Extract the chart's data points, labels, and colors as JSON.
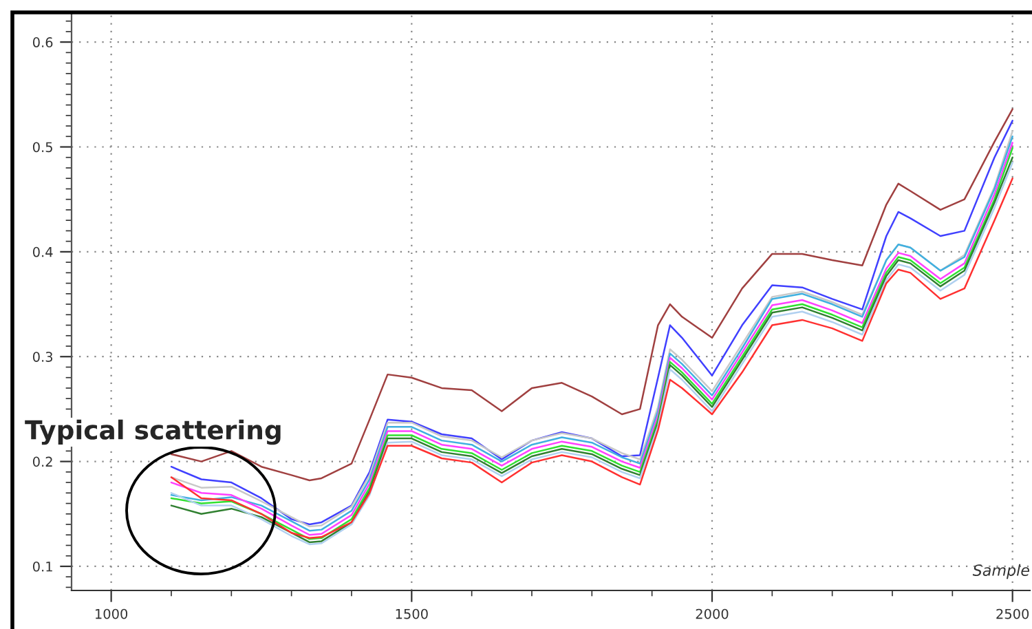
{
  "chart_data": {
    "type": "line",
    "xlabel": "Sample",
    "annotations": [
      "Typical scattering"
    ],
    "x": [
      1100,
      1150,
      1200,
      1250,
      1300,
      1330,
      1350,
      1400,
      1430,
      1460,
      1500,
      1550,
      1600,
      1650,
      1700,
      1750,
      1800,
      1850,
      1880,
      1910,
      1930,
      1950,
      2000,
      2050,
      2100,
      2150,
      2200,
      2250,
      2290,
      2310,
      2330,
      2380,
      2420,
      2470,
      2500
    ],
    "series": [
      {
        "color": "#a04040",
        "values": [
          0.207,
          0.2,
          0.21,
          0.195,
          0.187,
          0.182,
          0.184,
          0.198,
          0.24,
          0.283,
          0.28,
          0.27,
          0.268,
          0.248,
          0.27,
          0.275,
          0.262,
          0.245,
          0.25,
          0.33,
          0.35,
          0.338,
          0.318,
          0.365,
          0.398,
          0.398,
          0.392,
          0.387,
          0.445,
          0.465,
          0.458,
          0.44,
          0.45,
          0.505,
          0.536
        ]
      },
      {
        "color": "#4040ff",
        "values": [
          0.195,
          0.183,
          0.18,
          0.165,
          0.145,
          0.14,
          0.142,
          0.158,
          0.19,
          0.24,
          0.238,
          0.226,
          0.222,
          0.202,
          0.22,
          0.228,
          0.222,
          0.205,
          0.206,
          0.28,
          0.33,
          0.318,
          0.282,
          0.33,
          0.368,
          0.366,
          0.355,
          0.345,
          0.415,
          0.438,
          0.432,
          0.415,
          0.42,
          0.49,
          0.525
        ]
      },
      {
        "color": "#c8c8c8",
        "values": [
          0.185,
          0.175,
          0.176,
          0.162,
          0.147,
          0.138,
          0.139,
          0.157,
          0.187,
          0.237,
          0.237,
          0.224,
          0.22,
          0.204,
          0.22,
          0.227,
          0.222,
          0.208,
          0.202,
          0.252,
          0.307,
          0.297,
          0.267,
          0.312,
          0.357,
          0.362,
          0.352,
          0.34,
          0.392,
          0.407,
          0.404,
          0.382,
          0.397,
          0.462,
          0.515
        ]
      },
      {
        "color": "#40b0e0",
        "values": [
          0.168,
          0.163,
          0.166,
          0.158,
          0.143,
          0.134,
          0.135,
          0.153,
          0.183,
          0.233,
          0.233,
          0.22,
          0.216,
          0.2,
          0.216,
          0.223,
          0.218,
          0.204,
          0.198,
          0.248,
          0.303,
          0.293,
          0.263,
          0.308,
          0.355,
          0.36,
          0.35,
          0.338,
          0.392,
          0.407,
          0.404,
          0.382,
          0.395,
          0.46,
          0.51
        ]
      },
      {
        "color": "#ff40ff",
        "values": [
          0.18,
          0.17,
          0.168,
          0.155,
          0.139,
          0.13,
          0.131,
          0.149,
          0.179,
          0.229,
          0.229,
          0.216,
          0.212,
          0.196,
          0.212,
          0.219,
          0.214,
          0.2,
          0.194,
          0.244,
          0.299,
          0.289,
          0.259,
          0.304,
          0.349,
          0.354,
          0.344,
          0.332,
          0.384,
          0.399,
          0.396,
          0.374,
          0.389,
          0.455,
          0.504
        ]
      },
      {
        "color": "#30e030",
        "values": [
          0.165,
          0.16,
          0.162,
          0.15,
          0.135,
          0.126,
          0.127,
          0.145,
          0.175,
          0.225,
          0.225,
          0.212,
          0.208,
          0.192,
          0.208,
          0.215,
          0.21,
          0.196,
          0.19,
          0.24,
          0.295,
          0.285,
          0.255,
          0.3,
          0.345,
          0.35,
          0.34,
          0.328,
          0.38,
          0.395,
          0.392,
          0.37,
          0.385,
          0.45,
          0.499
        ]
      },
      {
        "color": "#308030",
        "values": [
          0.158,
          0.15,
          0.155,
          0.147,
          0.132,
          0.123,
          0.124,
          0.142,
          0.172,
          0.222,
          0.222,
          0.209,
          0.205,
          0.189,
          0.205,
          0.212,
          0.207,
          0.193,
          0.187,
          0.237,
          0.292,
          0.282,
          0.252,
          0.297,
          0.342,
          0.347,
          0.337,
          0.325,
          0.377,
          0.392,
          0.389,
          0.367,
          0.382,
          0.447,
          0.49
        ]
      },
      {
        "color": "#b0d0f0",
        "values": [
          0.17,
          0.158,
          0.158,
          0.145,
          0.129,
          0.121,
          0.122,
          0.14,
          0.168,
          0.218,
          0.219,
          0.206,
          0.202,
          0.186,
          0.202,
          0.209,
          0.204,
          0.19,
          0.184,
          0.234,
          0.288,
          0.278,
          0.248,
          0.293,
          0.338,
          0.343,
          0.333,
          0.321,
          0.373,
          0.388,
          0.385,
          0.363,
          0.378,
          0.442,
          0.485
        ]
      },
      {
        "color": "#ff3030",
        "values": [
          0.185,
          0.165,
          0.163,
          0.15,
          0.132,
          0.127,
          0.128,
          0.142,
          0.17,
          0.215,
          0.215,
          0.203,
          0.199,
          0.18,
          0.199,
          0.206,
          0.2,
          0.185,
          0.178,
          0.23,
          0.278,
          0.27,
          0.245,
          0.285,
          0.33,
          0.335,
          0.327,
          0.315,
          0.37,
          0.383,
          0.38,
          0.355,
          0.365,
          0.43,
          0.47
        ]
      }
    ],
    "xlim": [
      934,
      2529
    ],
    "ylim": [
      0.077,
      0.627
    ],
    "xticks": [
      1000,
      1500,
      2000,
      2500
    ],
    "yticks": [
      0.1,
      0.2,
      0.3,
      0.4,
      0.5,
      0.6
    ],
    "grid": true
  }
}
